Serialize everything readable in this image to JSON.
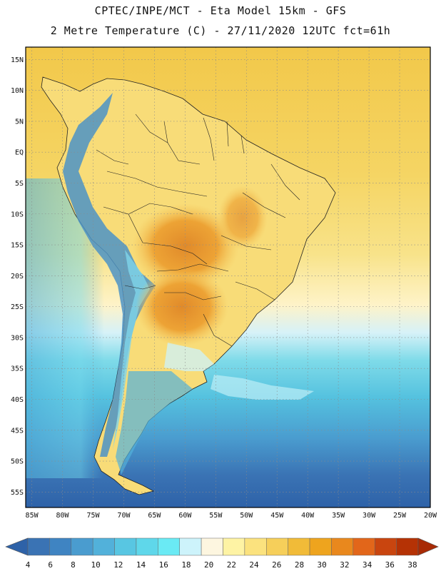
{
  "header": {
    "line1": "CPTEC/INPE/MCT -  Eta Model 15km - GFS",
    "line2": "2 Metre Temperature (C) - 27/11/2020 12UTC fct=61h"
  },
  "axes": {
    "lat_labels": [
      "15N",
      "10N",
      "5N",
      "EQ",
      "5S",
      "10S",
      "15S",
      "20S",
      "25S",
      "30S",
      "35S",
      "40S",
      "45S",
      "50S",
      "55S"
    ],
    "lat_values": [
      15,
      10,
      5,
      0,
      -5,
      -10,
      -15,
      -20,
      -25,
      -30,
      -35,
      -40,
      -45,
      -50,
      -55
    ],
    "lon_labels": [
      "85W",
      "80W",
      "75W",
      "70W",
      "65W",
      "60W",
      "55W",
      "50W",
      "45W",
      "40W",
      "35W",
      "30W",
      "25W",
      "20W"
    ],
    "lon_values": [
      -85,
      -80,
      -75,
      -70,
      -65,
      -60,
      -55,
      -50,
      -45,
      -40,
      -35,
      -30,
      -25,
      -20
    ],
    "lat_range": [
      -57.5,
      17.0
    ],
    "lon_range": [
      -86.0,
      -20.0
    ]
  },
  "colorbar": {
    "labels": [
      "4",
      "6",
      "8",
      "10",
      "12",
      "14",
      "16",
      "18",
      "20",
      "22",
      "24",
      "26",
      "28",
      "30",
      "32",
      "34",
      "36",
      "38"
    ],
    "colors": [
      "#3a73b4",
      "#3f84c2",
      "#4a9ccf",
      "#52b1da",
      "#58c6e2",
      "#5fd7ea",
      "#6aeaf4",
      "#cdf3fb",
      "#fdf6e0",
      "#fef3a4",
      "#fbe27e",
      "#f6cf5a",
      "#f1bb38",
      "#eea41e",
      "#e9881d",
      "#e2661a",
      "#c9450f",
      "#b53205"
    ],
    "under_color": "#2e62a8",
    "over_color": "#a82a05"
  },
  "legend": {
    "ocean_north_color": "#f2c84a",
    "ocean_mid_color": "#f7e07c",
    "ocean_cool_color": "#bdeef6",
    "ocean_cold_color": "#52b1da",
    "ocean_south_color": "#3a73b4",
    "land_color": "#f8dc78",
    "hot_core_color": "#eda335",
    "andes_color": "#4c93c6"
  }
}
